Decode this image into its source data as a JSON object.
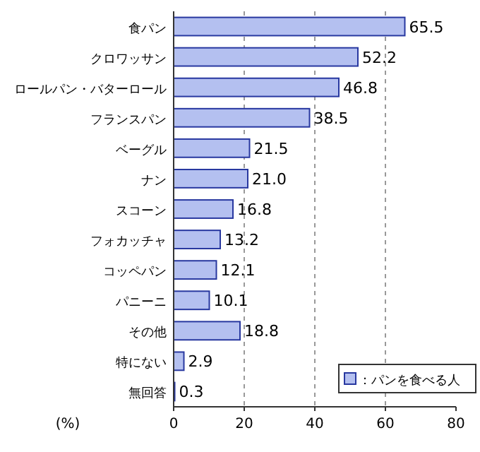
{
  "chart_data": {
    "type": "bar",
    "orientation": "horizontal",
    "xlabel": "(%)",
    "categories": [
      "食パン",
      "クロワッサン",
      "ロールパン・バターロール",
      "フランスパン",
      "ベーグル",
      "ナン",
      "スコーン",
      "フォカッチャ",
      "コッペパン",
      "パニーニ",
      "その他",
      "特にない",
      "無回答"
    ],
    "series": [
      {
        "name": "：パンを食べる人",
        "color": "#b4c0f0",
        "values": [
          65.5,
          52.2,
          46.8,
          38.5,
          21.5,
          21.0,
          16.8,
          13.2,
          12.1,
          10.1,
          18.8,
          2.9,
          0.3
        ]
      }
    ],
    "value_labels": [
      "65.5",
      "52.2",
      "46.8",
      "38.5",
      "21.5",
      "21.0",
      "16.8",
      "13.2",
      "12.1",
      "10.1",
      "18.8",
      "2.9",
      "0.3"
    ],
    "xlim": [
      0,
      80
    ],
    "xticks": [
      0,
      20,
      40,
      60,
      80
    ],
    "grid": "x",
    "legend": "bottom right"
  }
}
